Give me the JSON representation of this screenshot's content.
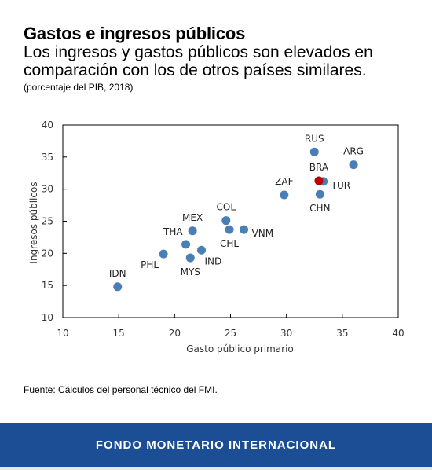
{
  "header": {
    "title": "Gastos e ingresos públicos",
    "subtitle": "Los ingresos y gastos públicos son elevados en comparación con los de otros países similares.",
    "note": "(porcentaje del PIB, 2018)"
  },
  "source": "Fuente: Cálculos del personal técnico del FMI.",
  "footer": {
    "label": "FONDO MONETARIO INTERNACIONAL"
  },
  "colors": {
    "point": "#4a7fb5",
    "highlight": "#c00000",
    "footer": "#1c4e95"
  },
  "chart_data": {
    "type": "scatter",
    "xlabel": "Gasto público primario",
    "ylabel": "Ingresos públicos",
    "xlim": [
      10,
      40
    ],
    "ylim": [
      10,
      40
    ],
    "xticks": [
      10,
      15,
      20,
      25,
      30,
      35,
      40
    ],
    "yticks": [
      10,
      15,
      20,
      25,
      30,
      35,
      40
    ],
    "grid": false,
    "points": [
      {
        "label": "RUS",
        "x": 32.5,
        "y": 35.8,
        "label_pos": "top"
      },
      {
        "label": "ARG",
        "x": 36.0,
        "y": 33.8,
        "label_pos": "top"
      },
      {
        "label": "TUR",
        "x": 33.3,
        "y": 31.2,
        "label_pos": "right"
      },
      {
        "label": "CHN",
        "x": 33.0,
        "y": 29.2,
        "label_pos": "bottom"
      },
      {
        "label": "ZAF",
        "x": 29.8,
        "y": 29.1,
        "label_pos": "top"
      },
      {
        "label": "COL",
        "x": 24.6,
        "y": 25.1,
        "label_pos": "top"
      },
      {
        "label": "VNM",
        "x": 26.2,
        "y": 23.7,
        "label_pos": "right"
      },
      {
        "label": "CHL",
        "x": 24.9,
        "y": 23.7,
        "label_pos": "bottom"
      },
      {
        "label": "MEX",
        "x": 21.6,
        "y": 23.5,
        "label_pos": "top"
      },
      {
        "label": "THA",
        "x": 21.0,
        "y": 21.4,
        "label_pos": "top-left"
      },
      {
        "label": "IND",
        "x": 22.4,
        "y": 20.5,
        "label_pos": "bottom-right"
      },
      {
        "label": "MYS",
        "x": 21.4,
        "y": 19.3,
        "label_pos": "bottom"
      },
      {
        "label": "PHL",
        "x": 19.0,
        "y": 19.9,
        "label_pos": "bottom-left"
      },
      {
        "label": "IDN",
        "x": 14.9,
        "y": 14.8,
        "label_pos": "top"
      },
      {
        "label": "BRA",
        "x": 32.9,
        "y": 31.3,
        "label_pos": "top",
        "highlight": true
      }
    ]
  }
}
